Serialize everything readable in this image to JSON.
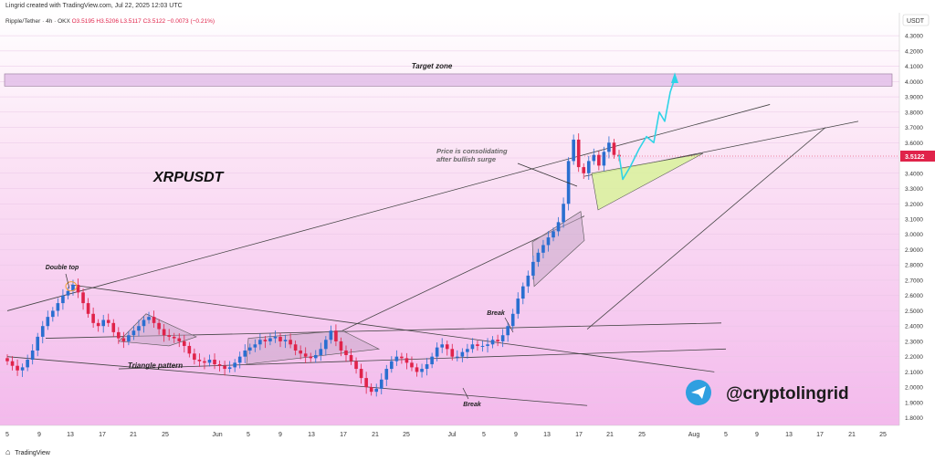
{
  "header": {
    "credit": "Lingrid created with TradingView.com, Jul 22, 2025 12:03 UTC"
  },
  "footer": {
    "brand": "TradingView"
  },
  "colors": {
    "up": "#2a6fd0",
    "down": "#e0234a",
    "price_tag": "#e0234a",
    "target_zone_fill": "#e4c2ea",
    "projection": "#2fd4e6",
    "consolidation_fill": "#d8f29a"
  },
  "chart_data": {
    "type": "candlestick",
    "symbol_line": {
      "name": "Ripple/Tether · 4h · OKX",
      "open": "O3.5195",
      "high": "H3.5206",
      "low": "L3.5117",
      "close": "C3.5122",
      "change": "−0.0073 (−0.21%)"
    },
    "title": "XRPUSDT",
    "currency": "USDT",
    "last_price": "3.5122",
    "y_ticks": [
      "4.3000",
      "4.2000",
      "4.1000",
      "4.0000",
      "3.9000",
      "3.8000",
      "3.7000",
      "3.6000",
      "3.5000",
      "3.4000",
      "3.3000",
      "3.2000",
      "3.1000",
      "3.0000",
      "2.9000",
      "2.8000",
      "2.7000",
      "2.6000",
      "2.5000",
      "2.4000",
      "2.3000",
      "2.2000",
      "2.1000",
      "2.0000",
      "1.9000",
      "1.8000"
    ],
    "x_ticks": [
      "5",
      "9",
      "13",
      "17",
      "21",
      "25",
      "Jun",
      "5",
      "9",
      "13",
      "17",
      "21",
      "25",
      "Jul",
      "5",
      "9",
      "13",
      "17",
      "21",
      "25",
      "Aug",
      "5",
      "9",
      "13",
      "17",
      "21",
      "25"
    ],
    "ylim": [
      1.75,
      4.45
    ],
    "closes": [
      2.17,
      2.14,
      2.11,
      2.13,
      2.18,
      2.24,
      2.33,
      2.4,
      2.46,
      2.5,
      2.55,
      2.6,
      2.63,
      2.67,
      2.62,
      2.55,
      2.48,
      2.42,
      2.4,
      2.44,
      2.42,
      2.36,
      2.32,
      2.3,
      2.34,
      2.37,
      2.4,
      2.44,
      2.46,
      2.42,
      2.38,
      2.34,
      2.33,
      2.32,
      2.3,
      2.27,
      2.22,
      2.18,
      2.17,
      2.16,
      2.18,
      2.15,
      2.14,
      2.12,
      2.13,
      2.16,
      2.2,
      2.24,
      2.26,
      2.28,
      2.31,
      2.3,
      2.32,
      2.33,
      2.3,
      2.31,
      2.28,
      2.24,
      2.22,
      2.2,
      2.19,
      2.21,
      2.25,
      2.31,
      2.37,
      2.3,
      2.24,
      2.21,
      2.17,
      2.12,
      2.06,
      2.0,
      1.97,
      1.99,
      2.05,
      2.12,
      2.17,
      2.2,
      2.19,
      2.16,
      2.13,
      2.1,
      2.12,
      2.15,
      2.2,
      2.26,
      2.28,
      2.25,
      2.2,
      2.2,
      2.23,
      2.25,
      2.28,
      2.27,
      2.27,
      2.28,
      2.31,
      2.3,
      2.34,
      2.4,
      2.48,
      2.58,
      2.66,
      2.73,
      2.82,
      2.88,
      2.93,
      2.98,
      3.02,
      3.08,
      3.2,
      3.48,
      3.62,
      3.44,
      3.4,
      3.48,
      3.52,
      3.45,
      3.54,
      3.6,
      3.52,
      3.51
    ],
    "events": [
      {
        "label": "Double top",
        "date": "May 13",
        "value": 2.67
      },
      {
        "label": "Triangle pattern",
        "date": "May 21",
        "value": 2.17
      },
      {
        "label": "Break",
        "date": "Jul 9",
        "value": 2.33
      },
      {
        "label": "Break",
        "date": "Jul 5",
        "value": 2.09
      },
      {
        "label": "Price is consolidating after bullish surge",
        "date": "Jul 17",
        "value": 3.42
      }
    ],
    "target_zone": {
      "label": "Target zone",
      "from": 3.97,
      "to": 4.05
    },
    "projection": [
      3.52,
      3.36,
      3.44,
      3.56,
      3.64,
      3.6,
      3.8,
      3.74,
      3.93,
      4.02
    ],
    "channel_lines": [
      [
        {
          "date": "May 5",
          "value": 2.5
        },
        {
          "date": "Aug 9",
          "value": 3.85
        }
      ],
      [
        {
          "date": "May 13",
          "value": 2.67
        },
        {
          "date": "Aug 2",
          "value": 2.1
        }
      ],
      [
        {
          "date": "May 5",
          "value": 2.2
        },
        {
          "date": "Jul 17",
          "value": 1.88
        }
      ],
      [
        {
          "date": "Jul 17",
          "value": 2.38
        },
        {
          "date": "Aug 16",
          "value": 3.7
        }
      ]
    ]
  },
  "watermark": {
    "handle": "@cryptolingrid",
    "icon": "telegram-icon"
  }
}
